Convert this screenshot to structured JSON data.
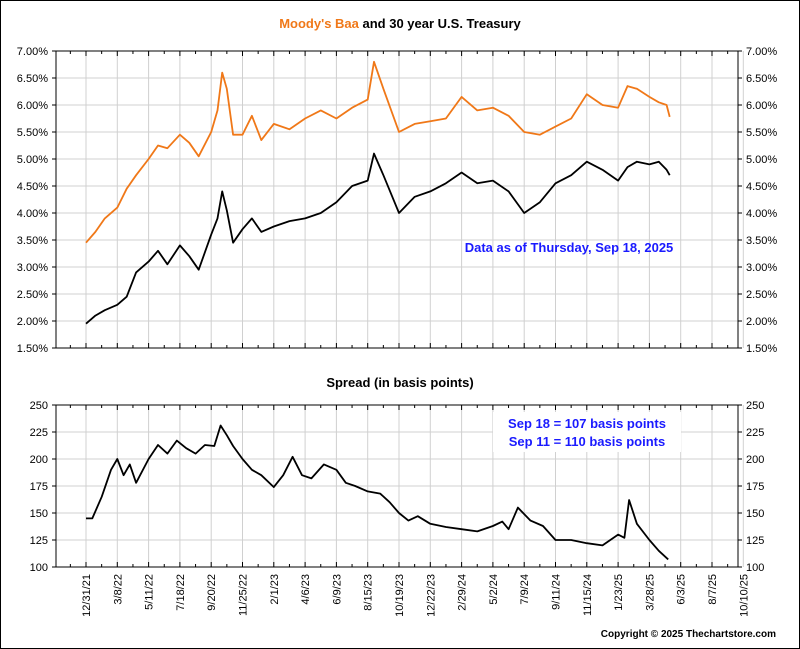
{
  "chart_data": [
    {
      "type": "line",
      "title_parts": [
        {
          "text": "Moody's Baa",
          "color": "#f07818"
        },
        {
          "text": " and 30 year U.S. Treasury",
          "color": "#000000"
        }
      ],
      "ylabel_format": "percent",
      "ylim": [
        1.5,
        7.0
      ],
      "yticks": [
        "1.50%",
        "2.00%",
        "2.50%",
        "3.00%",
        "3.50%",
        "4.00%",
        "4.50%",
        "5.00%",
        "5.50%",
        "6.00%",
        "6.50%",
        "7.00%"
      ],
      "annotation": {
        "text": "Data as of Thursday, Sep 18, 2025",
        "color": "#1a1aff"
      },
      "grid": true,
      "series": [
        {
          "name": "Moody's Baa",
          "color": "#f07818",
          "x": [
            0,
            0.3,
            0.6,
            1,
            1.3,
            1.6,
            2,
            2.3,
            2.6,
            3,
            3.3,
            3.6,
            4,
            4.2,
            4.35,
            4.5,
            4.7,
            5,
            5.3,
            5.6,
            6,
            6.5,
            7,
            7.5,
            8,
            8.5,
            9,
            9.2,
            9.5,
            10,
            10.5,
            11,
            11.5,
            12,
            12.5,
            13,
            13.5,
            14,
            14.5,
            15,
            15.5,
            16,
            16.5,
            17,
            17.3,
            17.6,
            18,
            18.3,
            18.55,
            18.65
          ],
          "y": [
            3.45,
            3.65,
            3.9,
            4.1,
            4.45,
            4.7,
            5.0,
            5.25,
            5.2,
            5.45,
            5.3,
            5.05,
            5.5,
            5.9,
            6.6,
            6.3,
            5.45,
            5.45,
            5.8,
            5.35,
            5.65,
            5.55,
            5.75,
            5.9,
            5.75,
            5.95,
            6.1,
            6.8,
            6.3,
            5.5,
            5.65,
            5.7,
            5.75,
            6.15,
            5.9,
            5.95,
            5.8,
            5.5,
            5.45,
            5.6,
            5.75,
            6.2,
            6.0,
            5.95,
            6.35,
            6.3,
            6.15,
            6.05,
            6.0,
            5.78
          ]
        },
        {
          "name": "30 year U.S. Treasury",
          "color": "#000000",
          "x": [
            0,
            0.3,
            0.6,
            1,
            1.3,
            1.6,
            2,
            2.3,
            2.6,
            3,
            3.3,
            3.6,
            4,
            4.2,
            4.35,
            4.5,
            4.7,
            5,
            5.3,
            5.6,
            6,
            6.5,
            7,
            7.5,
            8,
            8.5,
            9,
            9.2,
            9.5,
            10,
            10.5,
            11,
            11.5,
            12,
            12.5,
            13,
            13.5,
            14,
            14.5,
            15,
            15.5,
            16,
            16.5,
            17,
            17.3,
            17.6,
            18,
            18.3,
            18.55,
            18.65
          ],
          "y": [
            1.95,
            2.1,
            2.2,
            2.3,
            2.45,
            2.9,
            3.1,
            3.3,
            3.05,
            3.4,
            3.2,
            2.95,
            3.6,
            3.9,
            4.4,
            4.05,
            3.45,
            3.7,
            3.9,
            3.65,
            3.75,
            3.85,
            3.9,
            4.0,
            4.2,
            4.5,
            4.6,
            5.1,
            4.7,
            4.0,
            4.3,
            4.4,
            4.55,
            4.75,
            4.55,
            4.6,
            4.4,
            4.0,
            4.2,
            4.55,
            4.7,
            4.95,
            4.8,
            4.6,
            4.85,
            4.95,
            4.9,
            4.95,
            4.8,
            4.7
          ]
        }
      ]
    },
    {
      "type": "line",
      "title": "Spread (in basis points)",
      "ylim": [
        100,
        250
      ],
      "yticks": [
        "100",
        "125",
        "150",
        "175",
        "200",
        "225",
        "250"
      ],
      "annotations": [
        {
          "text": "Sep 18 = 107 basis points",
          "color": "#1a1aff"
        },
        {
          "text": "Sep 11 = 110 basis points",
          "color": "#1a1aff"
        }
      ],
      "xlabel_ticks": [
        "12/31/21",
        "3/8/22",
        "5/11/22",
        "7/18/22",
        "9/20/22",
        "11/25/22",
        "2/1/23",
        "4/6/23",
        "6/9/23",
        "8/15/23",
        "10/19/23",
        "12/22/23",
        "2/29/24",
        "5/2/24",
        "7/9/24",
        "9/11/24",
        "11/15/24",
        "1/23/25",
        "3/28/25",
        "6/3/25",
        "8/7/25",
        "10/10/25"
      ],
      "grid": true,
      "series": [
        {
          "name": "Spread",
          "color": "#000000",
          "x": [
            0,
            0.2,
            0.5,
            0.8,
            1,
            1.2,
            1.4,
            1.6,
            2,
            2.3,
            2.6,
            2.9,
            3.2,
            3.5,
            3.8,
            4.1,
            4.3,
            4.5,
            4.7,
            5,
            5.3,
            5.6,
            6,
            6.3,
            6.6,
            6.9,
            7.2,
            7.6,
            8,
            8.3,
            8.6,
            9,
            9.4,
            9.7,
            10,
            10.3,
            10.6,
            11,
            11.5,
            12,
            12.5,
            13,
            13.3,
            13.5,
            13.8,
            14.2,
            14.6,
            15,
            15.5,
            16,
            16.5,
            17,
            17.2,
            17.35,
            17.6,
            18,
            18.3,
            18.6
          ],
          "y": [
            145,
            145,
            165,
            190,
            200,
            185,
            195,
            178,
            200,
            213,
            205,
            217,
            210,
            205,
            213,
            212,
            231,
            222,
            212,
            200,
            190,
            185,
            174,
            185,
            202,
            185,
            182,
            195,
            190,
            178,
            175,
            170,
            168,
            160,
            150,
            143,
            147,
            140,
            137,
            135,
            133,
            138,
            142,
            135,
            155,
            143,
            138,
            125,
            125,
            122,
            120,
            130,
            127,
            162,
            140,
            125,
            115,
            107
          ]
        }
      ]
    }
  ],
  "footer": {
    "copyright": "Copyright © 2025 Thechartstore.com"
  }
}
